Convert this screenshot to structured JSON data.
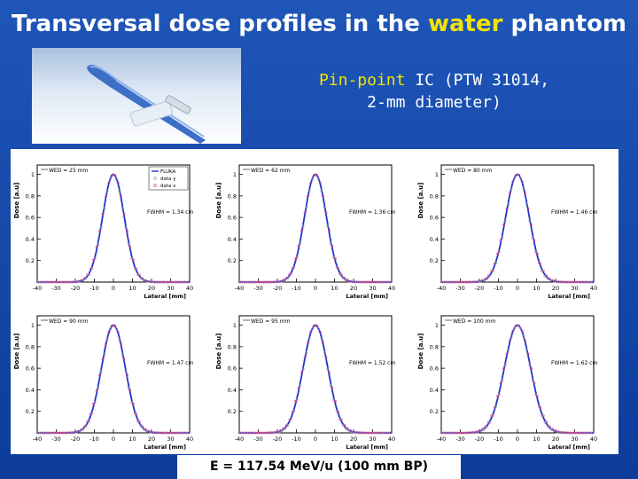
{
  "slide": {
    "title_parts": [
      "Transversal dose profiles in the ",
      "water",
      " phantom"
    ],
    "caption_line1_parts": [
      "Pin-point",
      " IC (PTW 31014,"
    ],
    "caption_line2": "2-mm diameter)",
    "footer": "E = 117.54 MeV/u (100 mm BP)",
    "colors": {
      "background": "#1346ab",
      "highlight": "#f2e300",
      "fluka": "#2233cc",
      "data_x": "#e0428c",
      "data_y": "#a0a0a0"
    }
  },
  "chart_data": [
    {
      "type": "line",
      "wed_label": "WED = 25 mm",
      "fwhm_label": "FWHM = 1.34 cm",
      "fwhm_cm": 1.34,
      "xlabel": "Lateral [mm]",
      "ylabel": "Dose [a.u]",
      "xlim": [
        -40,
        40
      ],
      "ylim": [
        0,
        1
      ],
      "xticks": [
        "-40",
        "-30",
        "-20",
        "-10",
        "0",
        "10",
        "20",
        "30",
        "40"
      ],
      "yticks": [
        "0.2",
        "0.4",
        "0.6",
        "0.8",
        "1"
      ],
      "legend": [
        "FLUKA",
        "data y",
        "data x"
      ],
      "series": [
        {
          "name": "FLUKA"
        },
        {
          "name": "data y"
        },
        {
          "name": "data x"
        }
      ]
    },
    {
      "type": "line",
      "wed_label": "WED = 62 mm",
      "fwhm_label": "FWHM = 1.36 cm",
      "fwhm_cm": 1.36,
      "xlabel": "Lateral [mm]",
      "ylabel": "Dose [a.u]",
      "xlim": [
        -40,
        40
      ],
      "ylim": [
        0,
        1
      ],
      "xticks": [
        "-40",
        "-30",
        "-20",
        "-10",
        "0",
        "10",
        "20",
        "30",
        "40"
      ],
      "yticks": [
        "0.2",
        "0.4",
        "0.6",
        "0.8",
        "1"
      ],
      "legend": [],
      "series": []
    },
    {
      "type": "line",
      "wed_label": "WED = 80 mm",
      "fwhm_label": "FWHM = 1.46 cm",
      "fwhm_cm": 1.46,
      "xlabel": "Lateral [mm]",
      "ylabel": "Dose [a.u]",
      "xlim": [
        -40,
        40
      ],
      "ylim": [
        0,
        1
      ],
      "xticks": [
        "-40",
        "-30",
        "-20",
        "-10",
        "0",
        "10",
        "20",
        "30",
        "40"
      ],
      "yticks": [
        "0.2",
        "0.4",
        "0.6",
        "0.8",
        "1"
      ],
      "legend": [],
      "series": []
    },
    {
      "type": "line",
      "wed_label": "WED = 90 mm",
      "fwhm_label": "FWHM = 1.47 cm",
      "fwhm_cm": 1.47,
      "xlabel": "Lateral [mm]",
      "ylabel": "Dose [a.u]",
      "xlim": [
        -40,
        40
      ],
      "ylim": [
        0,
        1
      ],
      "xticks": [
        "-40",
        "-30",
        "-20",
        "-10",
        "0",
        "10",
        "20",
        "30",
        "40"
      ],
      "yticks": [
        "0.2",
        "0.4",
        "0.6",
        "0.8",
        "1"
      ],
      "legend": [],
      "series": []
    },
    {
      "type": "line",
      "wed_label": "WED = 95 mm",
      "fwhm_label": "FWHM = 1.52 cm",
      "fwhm_cm": 1.52,
      "xlabel": "Lateral [mm]",
      "ylabel": "Dose [a.u]",
      "xlim": [
        -40,
        40
      ],
      "ylim": [
        0,
        1
      ],
      "xticks": [
        "-40",
        "-30",
        "-20",
        "-10",
        "0",
        "10",
        "20",
        "30",
        "40"
      ],
      "yticks": [
        "0.2",
        "0.4",
        "0.6",
        "0.8",
        "1"
      ],
      "legend": [],
      "series": []
    },
    {
      "type": "line",
      "wed_label": "WED = 100 mm",
      "fwhm_label": "FWHM = 1.62 cm",
      "fwhm_cm": 1.62,
      "xlabel": "Lateral [mm]",
      "ylabel": "Dose [a.u]",
      "xlim": [
        -40,
        40
      ],
      "ylim": [
        0,
        1
      ],
      "xticks": [
        "-40",
        "-30",
        "-20",
        "-10",
        "0",
        "10",
        "20",
        "30",
        "40"
      ],
      "yticks": [
        "0.2",
        "0.4",
        "0.6",
        "0.8",
        "1"
      ],
      "legend": [],
      "series": []
    }
  ]
}
